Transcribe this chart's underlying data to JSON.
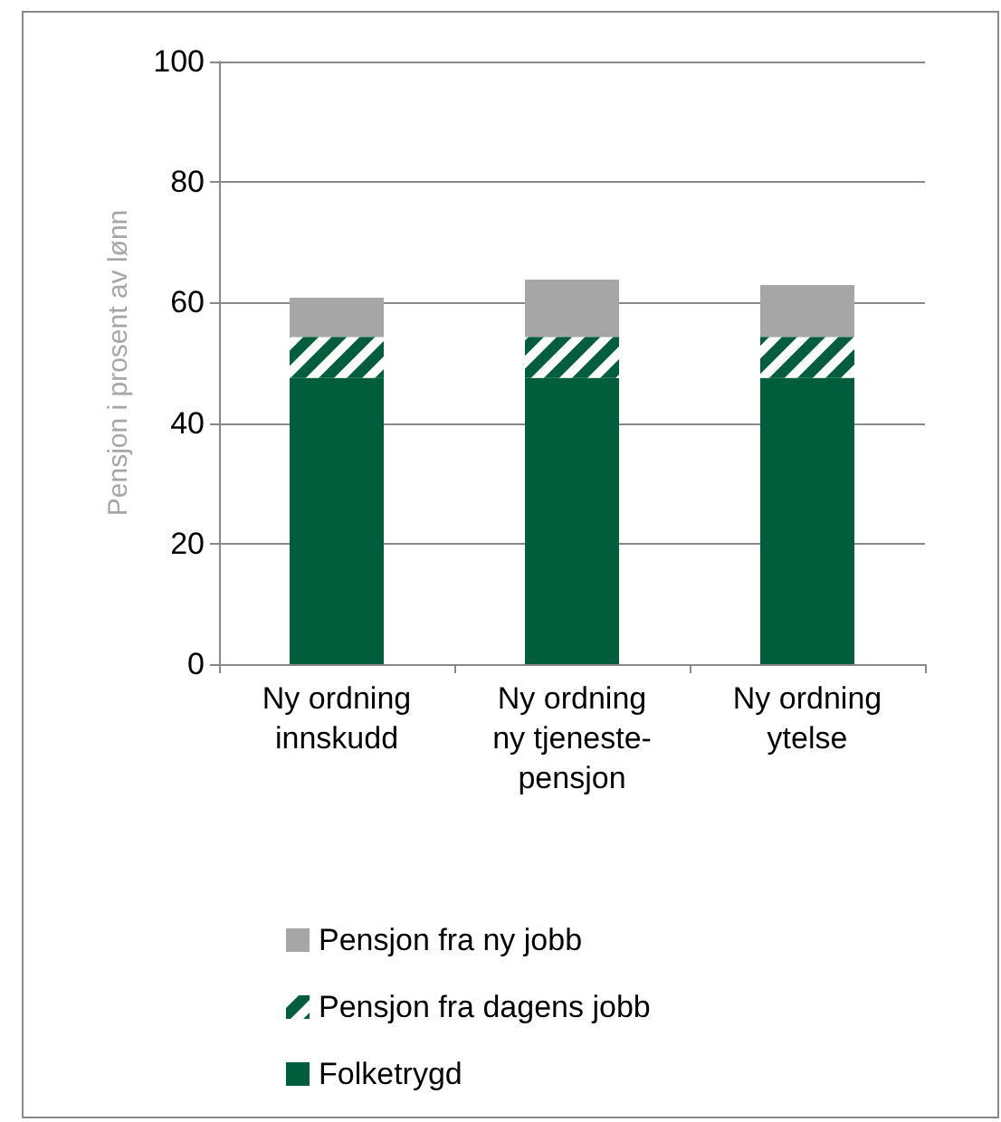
{
  "chart_data": {
    "type": "bar",
    "stacked": true,
    "ylabel": "Pensjon i prosent av lønn",
    "categories": [
      "Ny ordning\ninnskudd",
      "Ny ordning\nny tjeneste-\npensjon",
      "Ny ordning\nytelse"
    ],
    "series": [
      {
        "name": "Folketrygd",
        "color": "#005e3c",
        "values": [
          47.5,
          47.5,
          47.5
        ]
      },
      {
        "name": "Pensjon fra dagens jobb",
        "color": "#005e3c",
        "values": [
          6.8,
          6.8,
          6.8
        ]
      },
      {
        "name": "Pensjon fra ny jobb",
        "color": "#a6a6a6",
        "values": [
          6.5,
          9.5,
          8.6
        ]
      }
    ],
    "ylim": [
      0,
      100
    ],
    "yticks": [
      0,
      20,
      40,
      60,
      80,
      100
    ],
    "grid": "y",
    "legend": "bottom"
  }
}
